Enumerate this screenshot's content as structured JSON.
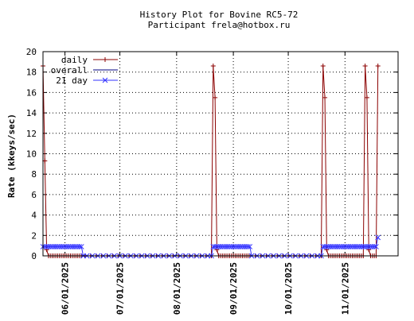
{
  "chart_data": {
    "type": "line",
    "title": "History Plot for Bovine RC5-72",
    "subtitle": "Participant frela@hotbox.ru",
    "xlabel": "",
    "ylabel": "Rate (kkeys/sec)",
    "ylim": [
      0,
      20
    ],
    "yticks": [
      0,
      2,
      4,
      6,
      8,
      10,
      12,
      14,
      16,
      18,
      20
    ],
    "xlim": [
      "2025-05-20",
      "2025-11-30"
    ],
    "xticks": [
      {
        "date": "2025-06-01",
        "label": "06/01/2025"
      },
      {
        "date": "2025-07-01",
        "label": "07/01/2025"
      },
      {
        "date": "2025-08-01",
        "label": "08/01/2025"
      },
      {
        "date": "2025-09-01",
        "label": "09/01/2025"
      },
      {
        "date": "2025-10-01",
        "label": "10/01/2025"
      },
      {
        "date": "2025-11-01",
        "label": "11/01/2025"
      }
    ],
    "grid": true,
    "legend_position": "top-left",
    "series": [
      {
        "name": "daily",
        "color": "#8b0000",
        "marker": "plus",
        "points": [
          {
            "x": "2025-05-20",
            "y": 18.6
          },
          {
            "x": "2025-05-21",
            "y": 9.3
          },
          {
            "x": "2025-05-22",
            "y": 0.6
          },
          {
            "x": "2025-05-23",
            "y": 0
          },
          {
            "x": "2025-05-24",
            "y": 0
          },
          {
            "x": "2025-05-25",
            "y": 0
          },
          {
            "x": "2025-05-26",
            "y": 0
          },
          {
            "x": "2025-05-27",
            "y": 0
          },
          {
            "x": "2025-05-28",
            "y": 0
          },
          {
            "x": "2025-05-29",
            "y": 0
          },
          {
            "x": "2025-05-30",
            "y": 0
          },
          {
            "x": "2025-05-31",
            "y": 0
          },
          {
            "x": "2025-06-01",
            "y": 0
          },
          {
            "x": "2025-06-02",
            "y": 0
          },
          {
            "x": "2025-06-03",
            "y": 0
          },
          {
            "x": "2025-06-04",
            "y": 0
          },
          {
            "x": "2025-06-05",
            "y": 0
          },
          {
            "x": "2025-06-06",
            "y": 0
          },
          {
            "x": "2025-06-07",
            "y": 0
          },
          {
            "x": "2025-06-08",
            "y": 0
          },
          {
            "x": "2025-06-09",
            "y": 0
          },
          {
            "x": "2025-06-10",
            "y": 0
          },
          {
            "x": "2025-06-12",
            "y": 0
          },
          {
            "x": "2025-06-15",
            "y": 0
          },
          {
            "x": "2025-06-18",
            "y": 0
          },
          {
            "x": "2025-06-21",
            "y": 0
          },
          {
            "x": "2025-06-24",
            "y": 0
          },
          {
            "x": "2025-06-27",
            "y": 0
          },
          {
            "x": "2025-06-30",
            "y": 0
          },
          {
            "x": "2025-07-03",
            "y": 0
          },
          {
            "x": "2025-07-06",
            "y": 0
          },
          {
            "x": "2025-07-09",
            "y": 0
          },
          {
            "x": "2025-07-12",
            "y": 0
          },
          {
            "x": "2025-07-15",
            "y": 0
          },
          {
            "x": "2025-07-18",
            "y": 0
          },
          {
            "x": "2025-07-21",
            "y": 0
          },
          {
            "x": "2025-07-24",
            "y": 0
          },
          {
            "x": "2025-07-27",
            "y": 0
          },
          {
            "x": "2025-07-30",
            "y": 0
          },
          {
            "x": "2025-08-02",
            "y": 0
          },
          {
            "x": "2025-08-05",
            "y": 0
          },
          {
            "x": "2025-08-08",
            "y": 0
          },
          {
            "x": "2025-08-11",
            "y": 0
          },
          {
            "x": "2025-08-14",
            "y": 0
          },
          {
            "x": "2025-08-17",
            "y": 0
          },
          {
            "x": "2025-08-20",
            "y": 0
          },
          {
            "x": "2025-08-21",
            "y": 18.6
          },
          {
            "x": "2025-08-22",
            "y": 15.5
          },
          {
            "x": "2025-08-23",
            "y": 0.6
          },
          {
            "x": "2025-08-24",
            "y": 0
          },
          {
            "x": "2025-08-25",
            "y": 0
          },
          {
            "x": "2025-08-26",
            "y": 0
          },
          {
            "x": "2025-08-27",
            "y": 0
          },
          {
            "x": "2025-08-28",
            "y": 0
          },
          {
            "x": "2025-08-29",
            "y": 0
          },
          {
            "x": "2025-08-30",
            "y": 0
          },
          {
            "x": "2025-08-31",
            "y": 0
          },
          {
            "x": "2025-09-01",
            "y": 0
          },
          {
            "x": "2025-09-02",
            "y": 0
          },
          {
            "x": "2025-09-03",
            "y": 0
          },
          {
            "x": "2025-09-04",
            "y": 0
          },
          {
            "x": "2025-09-05",
            "y": 0
          },
          {
            "x": "2025-09-06",
            "y": 0
          },
          {
            "x": "2025-09-07",
            "y": 0
          },
          {
            "x": "2025-09-08",
            "y": 0
          },
          {
            "x": "2025-09-09",
            "y": 0
          },
          {
            "x": "2025-09-10",
            "y": 0
          },
          {
            "x": "2025-09-13",
            "y": 0
          },
          {
            "x": "2025-09-16",
            "y": 0
          },
          {
            "x": "2025-09-19",
            "y": 0
          },
          {
            "x": "2025-09-22",
            "y": 0
          },
          {
            "x": "2025-09-25",
            "y": 0
          },
          {
            "x": "2025-09-28",
            "y": 0
          },
          {
            "x": "2025-10-01",
            "y": 0
          },
          {
            "x": "2025-10-04",
            "y": 0
          },
          {
            "x": "2025-10-07",
            "y": 0
          },
          {
            "x": "2025-10-10",
            "y": 0
          },
          {
            "x": "2025-10-13",
            "y": 0
          },
          {
            "x": "2025-10-16",
            "y": 0
          },
          {
            "x": "2025-10-19",
            "y": 0
          },
          {
            "x": "2025-10-20",
            "y": 18.6
          },
          {
            "x": "2025-10-21",
            "y": 15.5
          },
          {
            "x": "2025-10-22",
            "y": 0.6
          },
          {
            "x": "2025-10-23",
            "y": 0
          },
          {
            "x": "2025-10-24",
            "y": 0
          },
          {
            "x": "2025-10-25",
            "y": 0
          },
          {
            "x": "2025-10-26",
            "y": 0
          },
          {
            "x": "2025-10-27",
            "y": 0
          },
          {
            "x": "2025-10-28",
            "y": 0
          },
          {
            "x": "2025-10-29",
            "y": 0
          },
          {
            "x": "2025-10-30",
            "y": 0
          },
          {
            "x": "2025-10-31",
            "y": 0
          },
          {
            "x": "2025-11-01",
            "y": 0
          },
          {
            "x": "2025-11-02",
            "y": 0
          },
          {
            "x": "2025-11-03",
            "y": 0
          },
          {
            "x": "2025-11-04",
            "y": 0
          },
          {
            "x": "2025-11-05",
            "y": 0
          },
          {
            "x": "2025-11-06",
            "y": 0
          },
          {
            "x": "2025-11-07",
            "y": 0
          },
          {
            "x": "2025-11-08",
            "y": 0
          },
          {
            "x": "2025-11-09",
            "y": 0
          },
          {
            "x": "2025-11-10",
            "y": 0
          },
          {
            "x": "2025-11-11",
            "y": 0
          },
          {
            "x": "2025-11-12",
            "y": 18.6
          },
          {
            "x": "2025-11-13",
            "y": 15.5
          },
          {
            "x": "2025-11-14",
            "y": 0.6
          },
          {
            "x": "2025-11-15",
            "y": 0
          },
          {
            "x": "2025-11-16",
            "y": 0
          },
          {
            "x": "2025-11-17",
            "y": 0
          },
          {
            "x": "2025-11-18",
            "y": 0
          },
          {
            "x": "2025-11-19",
            "y": 18.6
          }
        ]
      },
      {
        "name": "overall",
        "color": "#000080",
        "marker": "none",
        "points": []
      },
      {
        "name": "21 day",
        "color": "#3333ff",
        "marker": "cross",
        "points": [
          {
            "x": "2025-05-20",
            "y": 0.9
          },
          {
            "x": "2025-05-21",
            "y": 0.9
          },
          {
            "x": "2025-05-22",
            "y": 0.9
          },
          {
            "x": "2025-05-23",
            "y": 0.9
          },
          {
            "x": "2025-05-24",
            "y": 0.9
          },
          {
            "x": "2025-05-25",
            "y": 0.9
          },
          {
            "x": "2025-05-26",
            "y": 0.9
          },
          {
            "x": "2025-05-27",
            "y": 0.9
          },
          {
            "x": "2025-05-28",
            "y": 0.9
          },
          {
            "x": "2025-05-29",
            "y": 0.9
          },
          {
            "x": "2025-05-30",
            "y": 0.9
          },
          {
            "x": "2025-05-31",
            "y": 0.9
          },
          {
            "x": "2025-06-01",
            "y": 0.9
          },
          {
            "x": "2025-06-02",
            "y": 0.9
          },
          {
            "x": "2025-06-03",
            "y": 0.9
          },
          {
            "x": "2025-06-04",
            "y": 0.9
          },
          {
            "x": "2025-06-05",
            "y": 0.9
          },
          {
            "x": "2025-06-06",
            "y": 0.9
          },
          {
            "x": "2025-06-07",
            "y": 0.9
          },
          {
            "x": "2025-06-08",
            "y": 0.9
          },
          {
            "x": "2025-06-09",
            "y": 0.9
          },
          {
            "x": "2025-06-10",
            "y": 0.9
          },
          {
            "x": "2025-06-11",
            "y": 0
          },
          {
            "x": "2025-06-13",
            "y": 0
          },
          {
            "x": "2025-06-16",
            "y": 0
          },
          {
            "x": "2025-06-19",
            "y": 0
          },
          {
            "x": "2025-06-22",
            "y": 0
          },
          {
            "x": "2025-06-25",
            "y": 0
          },
          {
            "x": "2025-06-28",
            "y": 0
          },
          {
            "x": "2025-07-01",
            "y": 0
          },
          {
            "x": "2025-07-04",
            "y": 0
          },
          {
            "x": "2025-07-07",
            "y": 0
          },
          {
            "x": "2025-07-10",
            "y": 0
          },
          {
            "x": "2025-07-13",
            "y": 0
          },
          {
            "x": "2025-07-16",
            "y": 0
          },
          {
            "x": "2025-07-19",
            "y": 0
          },
          {
            "x": "2025-07-22",
            "y": 0
          },
          {
            "x": "2025-07-25",
            "y": 0
          },
          {
            "x": "2025-07-28",
            "y": 0
          },
          {
            "x": "2025-07-31",
            "y": 0
          },
          {
            "x": "2025-08-03",
            "y": 0
          },
          {
            "x": "2025-08-06",
            "y": 0
          },
          {
            "x": "2025-08-09",
            "y": 0
          },
          {
            "x": "2025-08-12",
            "y": 0
          },
          {
            "x": "2025-08-15",
            "y": 0
          },
          {
            "x": "2025-08-18",
            "y": 0
          },
          {
            "x": "2025-08-20",
            "y": 0
          },
          {
            "x": "2025-08-21",
            "y": 0.9
          },
          {
            "x": "2025-08-22",
            "y": 0.9
          },
          {
            "x": "2025-08-23",
            "y": 0.9
          },
          {
            "x": "2025-08-24",
            "y": 0.9
          },
          {
            "x": "2025-08-25",
            "y": 0.9
          },
          {
            "x": "2025-08-26",
            "y": 0.9
          },
          {
            "x": "2025-08-27",
            "y": 0.9
          },
          {
            "x": "2025-08-28",
            "y": 0.9
          },
          {
            "x": "2025-08-29",
            "y": 0.9
          },
          {
            "x": "2025-08-30",
            "y": 0.9
          },
          {
            "x": "2025-08-31",
            "y": 0.9
          },
          {
            "x": "2025-09-01",
            "y": 0.9
          },
          {
            "x": "2025-09-02",
            "y": 0.9
          },
          {
            "x": "2025-09-03",
            "y": 0.9
          },
          {
            "x": "2025-09-04",
            "y": 0.9
          },
          {
            "x": "2025-09-05",
            "y": 0.9
          },
          {
            "x": "2025-09-06",
            "y": 0.9
          },
          {
            "x": "2025-09-07",
            "y": 0.9
          },
          {
            "x": "2025-09-08",
            "y": 0.9
          },
          {
            "x": "2025-09-09",
            "y": 0.9
          },
          {
            "x": "2025-09-10",
            "y": 0.9
          },
          {
            "x": "2025-09-11",
            "y": 0
          },
          {
            "x": "2025-09-14",
            "y": 0
          },
          {
            "x": "2025-09-17",
            "y": 0
          },
          {
            "x": "2025-09-20",
            "y": 0
          },
          {
            "x": "2025-09-23",
            "y": 0
          },
          {
            "x": "2025-09-26",
            "y": 0
          },
          {
            "x": "2025-09-29",
            "y": 0
          },
          {
            "x": "2025-10-02",
            "y": 0
          },
          {
            "x": "2025-10-05",
            "y": 0
          },
          {
            "x": "2025-10-08",
            "y": 0
          },
          {
            "x": "2025-10-11",
            "y": 0
          },
          {
            "x": "2025-10-14",
            "y": 0
          },
          {
            "x": "2025-10-17",
            "y": 0
          },
          {
            "x": "2025-10-19",
            "y": 0
          },
          {
            "x": "2025-10-20",
            "y": 0.9
          },
          {
            "x": "2025-10-21",
            "y": 0.9
          },
          {
            "x": "2025-10-22",
            "y": 0.9
          },
          {
            "x": "2025-10-23",
            "y": 0.9
          },
          {
            "x": "2025-10-24",
            "y": 0.9
          },
          {
            "x": "2025-10-25",
            "y": 0.9
          },
          {
            "x": "2025-10-26",
            "y": 0.9
          },
          {
            "x": "2025-10-27",
            "y": 0.9
          },
          {
            "x": "2025-10-28",
            "y": 0.9
          },
          {
            "x": "2025-10-29",
            "y": 0.9
          },
          {
            "x": "2025-10-30",
            "y": 0.9
          },
          {
            "x": "2025-10-31",
            "y": 0.9
          },
          {
            "x": "2025-11-01",
            "y": 0.9
          },
          {
            "x": "2025-11-02",
            "y": 0.9
          },
          {
            "x": "2025-11-03",
            "y": 0.9
          },
          {
            "x": "2025-11-04",
            "y": 0.9
          },
          {
            "x": "2025-11-05",
            "y": 0.9
          },
          {
            "x": "2025-11-06",
            "y": 0.9
          },
          {
            "x": "2025-11-07",
            "y": 0.9
          },
          {
            "x": "2025-11-08",
            "y": 0.9
          },
          {
            "x": "2025-11-09",
            "y": 0.9
          },
          {
            "x": "2025-11-10",
            "y": 0.9
          },
          {
            "x": "2025-11-11",
            "y": 0.9
          },
          {
            "x": "2025-11-12",
            "y": 0.9
          },
          {
            "x": "2025-11-13",
            "y": 0.9
          },
          {
            "x": "2025-11-14",
            "y": 0.9
          },
          {
            "x": "2025-11-15",
            "y": 0.9
          },
          {
            "x": "2025-11-16",
            "y": 0.9
          },
          {
            "x": "2025-11-17",
            "y": 0.9
          },
          {
            "x": "2025-11-18",
            "y": 0.9
          },
          {
            "x": "2025-11-19",
            "y": 1.8
          }
        ]
      }
    ]
  }
}
